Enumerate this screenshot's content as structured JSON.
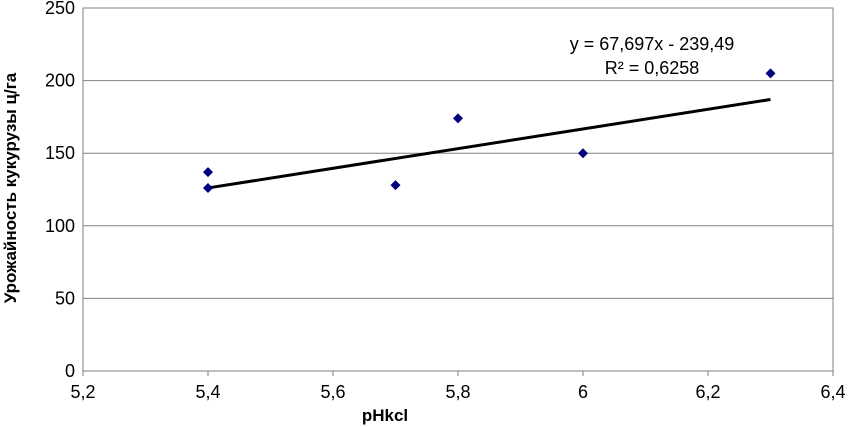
{
  "chart_data": {
    "type": "scatter",
    "xlabel": "pHkcl",
    "ylabel": "Урожайность кукурузы ц/га",
    "xlim": [
      5.2,
      6.4
    ],
    "ylim": [
      0,
      250
    ],
    "x_ticks": [
      "5,2",
      "5,4",
      "5,6",
      "5,8",
      "6",
      "6,2",
      "6,4"
    ],
    "y_ticks": [
      "0",
      "50",
      "100",
      "150",
      "200",
      "250"
    ],
    "grid": true,
    "points": [
      {
        "x": 5.4,
        "y": 137
      },
      {
        "x": 5.4,
        "y": 126
      },
      {
        "x": 5.7,
        "y": 128
      },
      {
        "x": 5.8,
        "y": 174
      },
      {
        "x": 6.0,
        "y": 150
      },
      {
        "x": 6.3,
        "y": 205
      }
    ],
    "trendline": {
      "type": "linear",
      "slope": 67.697,
      "intercept": -239.49,
      "x_range": [
        5.4,
        6.3
      ],
      "equation": "y = 67,697x - 239,49",
      "r_squared": "R² = 0,6258"
    },
    "colors": {
      "marker": "#00007f",
      "trendline": "#000000",
      "grid": "#808080"
    }
  }
}
